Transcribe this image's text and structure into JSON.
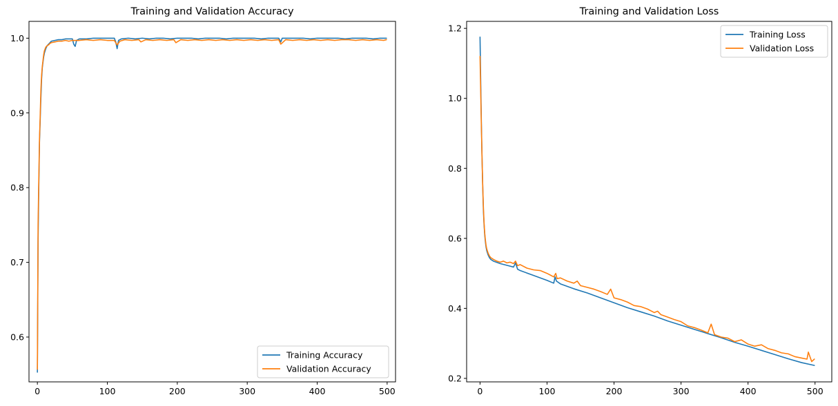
{
  "chart_data": [
    {
      "type": "line",
      "title": "Training and Validation Accuracy",
      "xlabel": "",
      "ylabel": "",
      "xlim": [
        -12,
        512
      ],
      "ylim": [
        0.54,
        1.0225
      ],
      "xticks": [
        0,
        100,
        200,
        300,
        400,
        500
      ],
      "yticks": [
        0.6,
        0.7,
        0.8,
        0.9,
        1.0
      ],
      "xtick_labels": [
        "0",
        "100",
        "200",
        "300",
        "400",
        "500"
      ],
      "ytick_labels": [
        "0.6",
        "0.7",
        "0.8",
        "0.9",
        "1.0"
      ],
      "grid": false,
      "legend_position": "lower-right",
      "series": [
        {
          "name": "Training Accuracy",
          "color": "#1f77b4",
          "x": [
            0,
            1,
            2,
            3,
            4,
            5,
            6,
            7,
            8,
            9,
            10,
            12,
            14,
            16,
            18,
            20,
            25,
            30,
            35,
            40,
            45,
            50,
            52,
            54,
            56,
            60,
            70,
            80,
            90,
            100,
            110,
            112,
            114,
            116,
            120,
            130,
            140,
            150,
            160,
            170,
            180,
            190,
            200,
            210,
            220,
            230,
            240,
            250,
            260,
            270,
            280,
            290,
            300,
            310,
            320,
            330,
            340,
            345,
            348,
            350,
            360,
            370,
            380,
            390,
            400,
            410,
            420,
            430,
            440,
            450,
            460,
            470,
            480,
            490,
            499
          ],
          "y": [
            0.553,
            0.73,
            0.8,
            0.86,
            0.89,
            0.92,
            0.945,
            0.96,
            0.968,
            0.975,
            0.98,
            0.986,
            0.99,
            0.992,
            0.994,
            0.996,
            0.997,
            0.998,
            0.998,
            0.999,
            0.999,
            0.999,
            0.992,
            0.989,
            0.997,
            0.999,
            0.999,
            1.0,
            1.0,
            1.0,
            1.0,
            0.995,
            0.986,
            0.997,
            0.999,
            1.0,
            0.999,
            1.0,
            0.999,
            1.0,
            1.0,
            0.999,
            1.0,
            1.0,
            1.0,
            0.999,
            1.0,
            1.0,
            1.0,
            0.999,
            1.0,
            1.0,
            1.0,
            1.0,
            0.999,
            1.0,
            1.0,
            1.0,
            0.995,
            1.0,
            1.0,
            1.0,
            1.0,
            0.999,
            1.0,
            1.0,
            1.0,
            1.0,
            0.999,
            1.0,
            1.0,
            1.0,
            0.999,
            1.0,
            1.0
          ]
        },
        {
          "name": "Validation Accuracy",
          "color": "#ff7f0e",
          "x": [
            0,
            1,
            2,
            3,
            4,
            5,
            6,
            7,
            8,
            9,
            10,
            12,
            14,
            16,
            18,
            20,
            25,
            30,
            35,
            40,
            45,
            50,
            55,
            60,
            70,
            80,
            90,
            100,
            110,
            114,
            118,
            125,
            135,
            145,
            148,
            155,
            165,
            175,
            185,
            195,
            198,
            205,
            215,
            225,
            235,
            245,
            255,
            265,
            275,
            285,
            295,
            305,
            315,
            325,
            335,
            345,
            348,
            355,
            365,
            375,
            385,
            395,
            405,
            415,
            425,
            435,
            445,
            455,
            465,
            475,
            485,
            495,
            499
          ],
          "y": [
            0.557,
            0.75,
            0.81,
            0.865,
            0.895,
            0.93,
            0.95,
            0.962,
            0.97,
            0.978,
            0.983,
            0.988,
            0.99,
            0.991,
            0.993,
            0.994,
            0.995,
            0.996,
            0.996,
            0.997,
            0.996,
            0.997,
            0.997,
            0.997,
            0.998,
            0.997,
            0.998,
            0.997,
            0.997,
            0.991,
            0.996,
            0.998,
            0.997,
            0.998,
            0.995,
            0.998,
            0.997,
            0.998,
            0.997,
            0.998,
            0.994,
            0.998,
            0.997,
            0.998,
            0.997,
            0.998,
            0.997,
            0.998,
            0.997,
            0.998,
            0.997,
            0.998,
            0.997,
            0.998,
            0.997,
            0.998,
            0.992,
            0.998,
            0.997,
            0.998,
            0.997,
            0.998,
            0.997,
            0.998,
            0.997,
            0.998,
            0.998,
            0.997,
            0.998,
            0.997,
            0.998,
            0.997,
            0.998
          ]
        }
      ]
    },
    {
      "type": "line",
      "title": "Training and Validation Loss",
      "xlabel": "",
      "ylabel": "",
      "xlim": [
        -20,
        525
      ],
      "ylim": [
        0.19,
        1.22
      ],
      "xticks": [
        0,
        100,
        200,
        300,
        400,
        500
      ],
      "yticks": [
        0.2,
        0.4,
        0.6,
        0.8,
        1.0,
        1.2
      ],
      "xtick_labels": [
        "0",
        "100",
        "200",
        "300",
        "400",
        "500"
      ],
      "ytick_labels": [
        "0.2",
        "0.4",
        "0.6",
        "0.8",
        "1.0",
        "1.2"
      ],
      "grid": false,
      "legend_position": "upper-right",
      "series": [
        {
          "name": "Training Loss",
          "color": "#1f77b4",
          "x": [
            0,
            1,
            2,
            3,
            4,
            5,
            6,
            7,
            8,
            9,
            10,
            12,
            14,
            16,
            20,
            30,
            40,
            50,
            53,
            56,
            60,
            80,
            100,
            110,
            112,
            114,
            120,
            140,
            160,
            180,
            200,
            220,
            240,
            260,
            280,
            300,
            320,
            340,
            360,
            380,
            400,
            420,
            440,
            460,
            480,
            499
          ],
          "y": [
            1.175,
            1.05,
            0.93,
            0.83,
            0.75,
            0.68,
            0.64,
            0.61,
            0.59,
            0.575,
            0.565,
            0.553,
            0.545,
            0.54,
            0.535,
            0.528,
            0.523,
            0.518,
            0.53,
            0.512,
            0.508,
            0.494,
            0.48,
            0.472,
            0.49,
            0.478,
            0.47,
            0.456,
            0.444,
            0.43,
            0.416,
            0.402,
            0.39,
            0.378,
            0.364,
            0.352,
            0.34,
            0.328,
            0.316,
            0.303,
            0.292,
            0.28,
            0.268,
            0.256,
            0.245,
            0.237
          ]
        },
        {
          "name": "Validation Loss",
          "color": "#ff7f0e",
          "x": [
            0,
            1,
            2,
            3,
            4,
            5,
            6,
            7,
            8,
            9,
            10,
            12,
            14,
            16,
            20,
            25,
            30,
            35,
            40,
            45,
            50,
            53,
            56,
            60,
            70,
            80,
            90,
            100,
            105,
            110,
            113,
            115,
            120,
            130,
            140,
            145,
            150,
            160,
            170,
            180,
            190,
            195,
            200,
            210,
            220,
            230,
            240,
            250,
            260,
            265,
            270,
            280,
            290,
            300,
            310,
            320,
            330,
            340,
            345,
            350,
            360,
            370,
            380,
            390,
            400,
            410,
            420,
            430,
            440,
            450,
            460,
            470,
            480,
            488,
            490,
            495,
            499
          ],
          "y": [
            1.12,
            1.02,
            0.92,
            0.83,
            0.75,
            0.69,
            0.645,
            0.615,
            0.595,
            0.58,
            0.57,
            0.558,
            0.55,
            0.545,
            0.54,
            0.535,
            0.532,
            0.535,
            0.53,
            0.532,
            0.528,
            0.535,
            0.522,
            0.525,
            0.515,
            0.51,
            0.508,
            0.5,
            0.495,
            0.49,
            0.5,
            0.485,
            0.487,
            0.478,
            0.472,
            0.478,
            0.465,
            0.46,
            0.455,
            0.448,
            0.44,
            0.455,
            0.43,
            0.425,
            0.418,
            0.408,
            0.405,
            0.398,
            0.388,
            0.392,
            0.382,
            0.375,
            0.368,
            0.362,
            0.35,
            0.345,
            0.338,
            0.33,
            0.355,
            0.325,
            0.318,
            0.315,
            0.305,
            0.31,
            0.298,
            0.292,
            0.296,
            0.285,
            0.28,
            0.273,
            0.27,
            0.262,
            0.258,
            0.255,
            0.275,
            0.248,
            0.255
          ]
        }
      ]
    }
  ]
}
